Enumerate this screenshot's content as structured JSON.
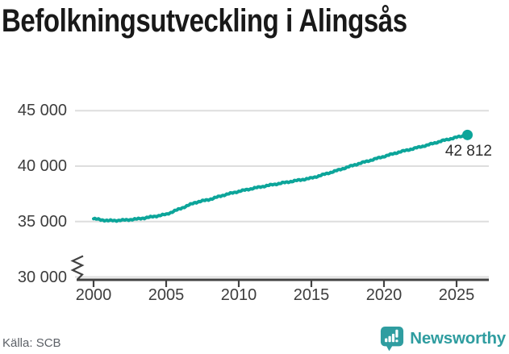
{
  "title": "Befolkningsutveckling i Alingsås",
  "footer": {
    "source": "Källa: SCB",
    "brand": "Newsworthy"
  },
  "colors": {
    "line": "#0ca59a",
    "dot": "#0ca59a",
    "brand": "#2f9da0",
    "grid": "#dedede",
    "axis": "#424242",
    "tick_text": "#3d3d3d",
    "title_text": "#191919",
    "source_text": "#5d6167",
    "background": "#ffffff"
  },
  "chart_data": {
    "type": "line",
    "title": "Befolkningsutveckling i Alingsås",
    "xlabel": "",
    "ylabel": "",
    "grid": "horizontal",
    "legend": "none",
    "axis_break": true,
    "ylim": [
      30000,
      46000
    ],
    "series_name": "Befolkning",
    "x": [
      2000,
      2001,
      2002,
      2003,
      2004,
      2005,
      2006,
      2007,
      2008,
      2009,
      2010,
      2011,
      2012,
      2013,
      2014,
      2015,
      2016,
      2017,
      2018,
      2019,
      2020,
      2021,
      2022,
      2023,
      2024,
      2025,
      2025.75
    ],
    "values": [
      35250,
      35080,
      35120,
      35230,
      35420,
      35650,
      36180,
      36720,
      37000,
      37400,
      37720,
      38000,
      38250,
      38480,
      38700,
      38920,
      39300,
      39700,
      40120,
      40500,
      40870,
      41250,
      41570,
      41900,
      42280,
      42600,
      42812
    ],
    "end_value": 42812,
    "end_label": "42 812",
    "yticks": {
      "values": [
        30000,
        35000,
        40000,
        45000
      ],
      "labels": [
        "30 000",
        "35 000",
        "40 000",
        "45 000"
      ]
    },
    "xticks": {
      "values": [
        2000,
        2005,
        2010,
        2015,
        2020,
        2025
      ],
      "labels": [
        "2000",
        "2005",
        "2010",
        "2015",
        "2020",
        "2025"
      ]
    }
  }
}
